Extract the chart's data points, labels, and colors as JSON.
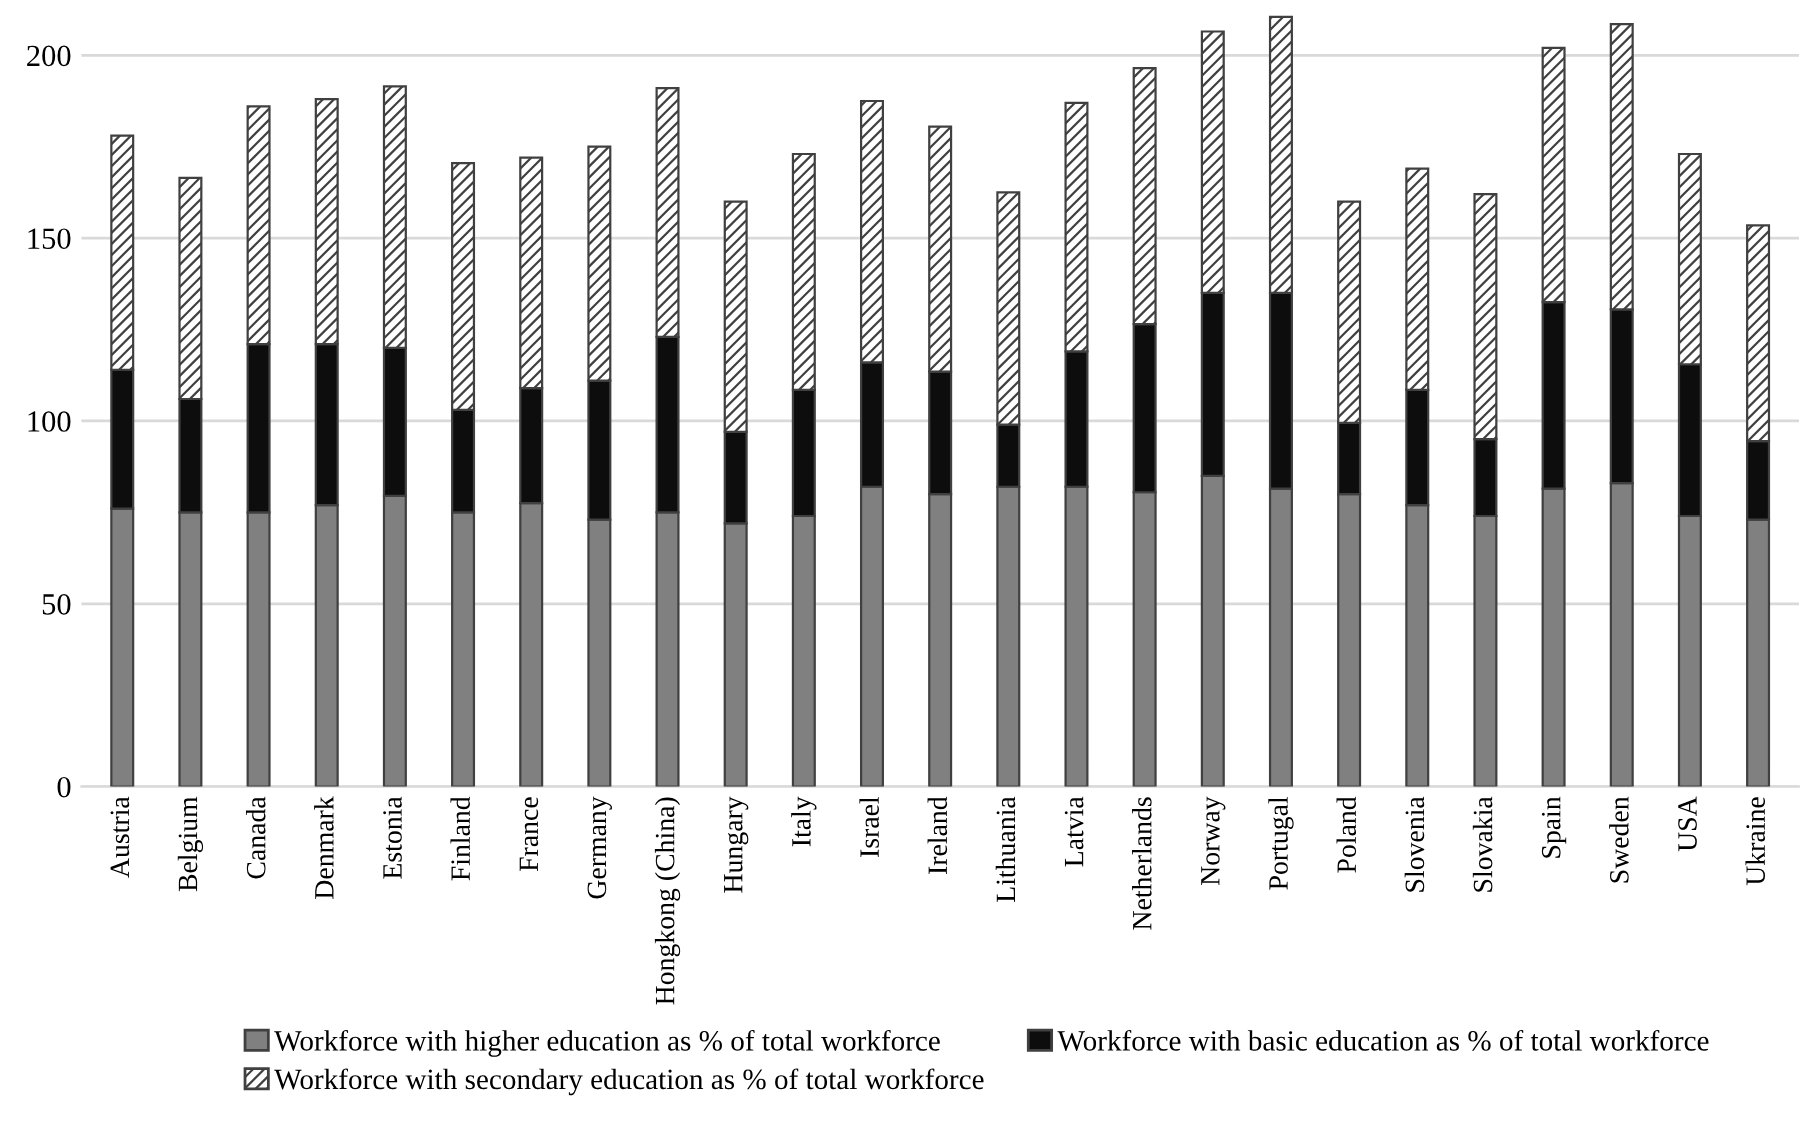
{
  "chart_data": {
    "type": "bar",
    "stacked": true,
    "categories": [
      "Austria",
      "Belgium",
      "Canada",
      "Denmark",
      "Estonia",
      "Finland",
      "France",
      "Germany",
      "Hongkong (China)",
      "Hungary",
      "Italy",
      "Israel",
      "Ireland",
      "Lithuania",
      "Latvia",
      "Netherlands",
      "Norway",
      "Portugal",
      "Poland",
      "Slovenia",
      "Slovakia",
      "Spain",
      "Sweden",
      "USA",
      "Ukraine"
    ],
    "series": [
      {
        "name": "Workforce with higher education as % of total workforce",
        "color": "#808080",
        "values": [
          76,
          75,
          75,
          77,
          79.5,
          75,
          77.5,
          73,
          75,
          72,
          74,
          82,
          80,
          82,
          82,
          80.5,
          85,
          81.5,
          80,
          77,
          74,
          81.5,
          83,
          74,
          73
        ]
      },
      {
        "name": "Workforce with basic education as % of total workforce",
        "color": "#0d0d0d",
        "values": [
          38,
          31,
          46,
          44,
          40.5,
          28,
          31.5,
          38,
          48,
          25,
          34.5,
          34,
          33.5,
          17,
          37,
          46,
          50,
          53.5,
          19.5,
          31.5,
          21,
          51,
          47.5,
          41.5,
          21.5
        ]
      },
      {
        "name": "Workforce with secondary education as % of total workforce",
        "color": "#404040",
        "values": [
          64,
          60.5,
          65,
          67,
          71.5,
          67.5,
          63,
          64,
          68,
          63,
          64.5,
          71.5,
          67,
          63.5,
          68,
          70,
          71.5,
          75.5,
          60.5,
          60.5,
          67,
          69.5,
          78,
          57.5,
          59
        ]
      }
    ],
    "ylim": [
      0,
      212
    ],
    "yticks": [
      0,
      50,
      100,
      150,
      200
    ],
    "grid": "y",
    "legend": "bottom"
  }
}
